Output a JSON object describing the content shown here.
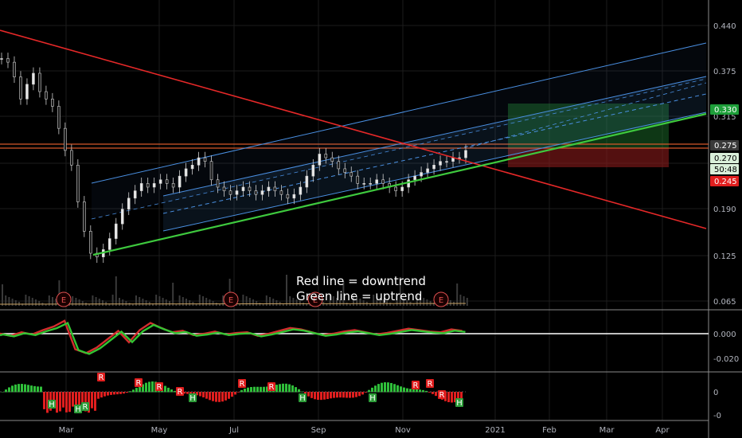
{
  "chart_data": {
    "type": "candlestick",
    "x_axis_labels": [
      "Mar",
      "May",
      "Jul",
      "Sep",
      "Nov",
      "2021",
      "Feb",
      "Mar",
      "Apr"
    ],
    "y_axis_ticks": [
      "0.440",
      "0.375",
      "0.315",
      "0.190",
      "0.125",
      "0.065"
    ],
    "price_badges": [
      {
        "label": "0.330",
        "color": "#1e9e3a",
        "text_color": "#ffffff"
      },
      {
        "label": "0.275",
        "color": "#3a3a3a",
        "text_color": "#ffffff"
      },
      {
        "label": "0.270",
        "color": "#d9efd9",
        "text_color": "#000000"
      },
      {
        "label": "50:48",
        "color": "#d9efd9",
        "text_color": "#000000"
      },
      {
        "label": "0.245",
        "color": "#e01e1e",
        "text_color": "#ffffff"
      }
    ],
    "osc1_ticks": [
      "0.000",
      "-0.020"
    ],
    "osc2_ticks": [
      "0",
      "-0"
    ],
    "annotations": [
      "Red line = downtrend",
      "Green line = uptrend"
    ],
    "earnings_marker": "E",
    "signal_markers": {
      "red": "R",
      "green": "H"
    },
    "price_series": [
      0.395,
      0.39,
      0.37,
      0.34,
      0.36,
      0.375,
      0.35,
      0.34,
      0.33,
      0.3,
      0.27,
      0.25,
      0.2,
      0.16,
      0.13,
      0.125,
      0.135,
      0.15,
      0.17,
      0.19,
      0.205,
      0.215,
      0.225,
      0.22,
      0.225,
      0.23,
      0.225,
      0.22,
      0.235,
      0.245,
      0.25,
      0.26,
      0.255,
      0.23,
      0.22,
      0.215,
      0.21,
      0.215,
      0.22,
      0.215,
      0.21,
      0.215,
      0.22,
      0.215,
      0.21,
      0.205,
      0.21,
      0.22,
      0.235,
      0.25,
      0.265,
      0.26,
      0.255,
      0.245,
      0.24,
      0.235,
      0.225,
      0.225,
      0.225,
      0.23,
      0.225,
      0.22,
      0.215,
      0.22,
      0.23,
      0.235,
      0.24,
      0.245,
      0.25,
      0.255,
      0.255,
      0.26,
      0.26,
      0.27
    ],
    "colors": {
      "downtrend": "#e52828",
      "uptrend": "#3ec93e",
      "channel": "#4a90e2",
      "resistance": "#d4572a"
    }
  }
}
